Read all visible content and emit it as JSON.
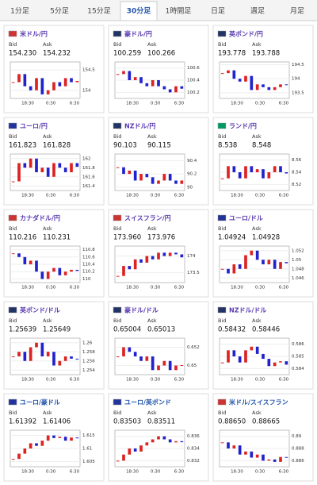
{
  "tabs": {
    "labels": [
      "1分足",
      "5分足",
      "15分足",
      "30分足",
      "1時間足",
      "日足",
      "週足",
      "月足"
    ],
    "active": 3
  },
  "bid_label": "Bid",
  "ask_label": "Ask",
  "cards": [
    {
      "name": "米ドル/円",
      "bid": "154.230",
      "ask": "154.232",
      "ylim": [
        153.8,
        154.7
      ],
      "yticks": [
        154.5,
        154
      ],
      "xticks": [
        "18:30",
        "0:30",
        "6:30"
      ],
      "closes": [
        154.2,
        154.4,
        154.1,
        154.0,
        154.3,
        153.9,
        154.0,
        154.2,
        154.1,
        154.3,
        154.2,
        154.23
      ]
    },
    {
      "name": "豪ドル/円",
      "bid": "100.259",
      "ask": "100.266",
      "ylim": [
        100.1,
        100.7
      ],
      "yticks": [
        100.6,
        100.4,
        100.2
      ],
      "xticks": [
        "18:30",
        "0:30",
        "6:30"
      ],
      "closes": [
        100.5,
        100.55,
        100.4,
        100.45,
        100.35,
        100.3,
        100.4,
        100.3,
        100.25,
        100.2,
        100.3,
        100.26
      ]
    },
    {
      "name": "英ポンド/円",
      "bid": "193.778",
      "ask": "193.788",
      "ylim": [
        193.3,
        194.6
      ],
      "yticks": [
        194.5,
        194,
        193.5
      ],
      "xticks": [
        "18:30",
        "0:30",
        "6:30"
      ],
      "closes": [
        194.2,
        194.3,
        194.0,
        193.9,
        194.1,
        193.6,
        193.8,
        193.7,
        193.6,
        193.7,
        193.8,
        193.78
      ]
    },
    {
      "name": "ユーロ/円",
      "bid": "161.823",
      "ask": "161.828",
      "ylim": [
        161.3,
        162.1
      ],
      "yticks": [
        162,
        161.8,
        161.6,
        161.4
      ],
      "xticks": [
        "18:30",
        "0:30",
        "6:30"
      ],
      "closes": [
        161.5,
        161.9,
        161.8,
        162.0,
        161.7,
        161.8,
        161.6,
        161.9,
        161.8,
        161.7,
        161.9,
        161.82
      ]
    },
    {
      "name": "NZドル/円",
      "bid": "90.103",
      "ask": "90.115",
      "ylim": [
        89.95,
        90.5
      ],
      "yticks": [
        90.4,
        90.2,
        90
      ],
      "xticks": [
        "18:30",
        "0:30",
        "6:30"
      ],
      "closes": [
        90.3,
        90.2,
        90.25,
        90.1,
        90.2,
        90.15,
        90.05,
        90.1,
        90.2,
        90.1,
        90.05,
        90.1
      ]
    },
    {
      "name": "ランド/円",
      "bid": "8.538",
      "ask": "8.548",
      "ylim": [
        8.51,
        8.57
      ],
      "yticks": [
        8.56,
        8.54,
        8.52
      ],
      "xticks": [
        "18:30",
        "0:30",
        "6:30"
      ],
      "closes": [
        8.53,
        8.55,
        8.54,
        8.53,
        8.55,
        8.54,
        8.545,
        8.53,
        8.54,
        8.55,
        8.54,
        8.538
      ]
    },
    {
      "name": "カナダドル/円",
      "bid": "110.216",
      "ask": "110.231",
      "ylim": [
        109.9,
        110.9
      ],
      "yticks": [
        110.8,
        110.6,
        110.4,
        110.2,
        110
      ],
      "xticks": [
        "18:30",
        "0:30",
        "6:30"
      ],
      "closes": [
        110.7,
        110.6,
        110.4,
        110.5,
        110.2,
        110.0,
        110.2,
        110.3,
        110.1,
        110.2,
        110.25,
        110.22
      ]
    },
    {
      "name": "スイスフラン/円",
      "bid": "173.960",
      "ask": "173.976",
      "ylim": [
        173.2,
        174.3
      ],
      "yticks": [
        174,
        173.5
      ],
      "xticks": [
        "18:30",
        "0:30",
        "6:30"
      ],
      "closes": [
        173.4,
        173.7,
        173.6,
        173.9,
        173.8,
        174.0,
        173.9,
        174.1,
        174.0,
        174.1,
        174.05,
        173.96
      ]
    },
    {
      "name": "ユーロ/ドル",
      "bid": "1.04924",
      "ask": "1.04928",
      "ylim": [
        1.045,
        1.053
      ],
      "yticks": [
        1.052,
        1.05,
        1.048,
        1.046
      ],
      "xticks": [
        "18:30",
        "0:30",
        "6:30"
      ],
      "closes": [
        1.048,
        1.047,
        1.049,
        1.048,
        1.051,
        1.052,
        1.05,
        1.049,
        1.05,
        1.048,
        1.0495,
        1.04924
      ]
    },
    {
      "name": "英ポンド/ドル",
      "bid": "1.25639",
      "ask": "1.25649",
      "ylim": [
        1.253,
        1.261
      ],
      "yticks": [
        1.26,
        1.258,
        1.256,
        1.254
      ],
      "xticks": [
        "18:30",
        "0:30",
        "6:30"
      ],
      "closes": [
        1.257,
        1.258,
        1.256,
        1.259,
        1.26,
        1.257,
        1.258,
        1.255,
        1.256,
        1.257,
        1.2565,
        1.25639
      ]
    },
    {
      "name": "豪ドル/ドル",
      "bid": "0.65004",
      "ask": "0.65013",
      "ylim": [
        0.649,
        0.653
      ],
      "yticks": [
        0.652,
        0.65
      ],
      "xticks": [
        "18:30",
        "0:30",
        "6:30"
      ],
      "closes": [
        0.651,
        0.652,
        0.6515,
        0.651,
        0.6505,
        0.651,
        0.6495,
        0.65,
        0.6505,
        0.6495,
        0.65,
        0.65004
      ]
    },
    {
      "name": "NZドル/ドル",
      "bid": "0.58432",
      "ask": "0.58446",
      "ylim": [
        0.5835,
        0.5865
      ],
      "yticks": [
        0.586,
        0.585,
        0.584
      ],
      "xticks": [
        "18:30",
        "0:30",
        "6:30"
      ],
      "closes": [
        0.5845,
        0.5855,
        0.585,
        0.5845,
        0.5855,
        0.5858,
        0.5852,
        0.5848,
        0.5842,
        0.5845,
        0.5846,
        0.58432
      ]
    },
    {
      "name": "ユーロ/豪ドル",
      "bid": "1.61392",
      "ask": "1.61406",
      "ylim": [
        1.603,
        1.617
      ],
      "yticks": [
        1.615,
        1.61,
        1.605
      ],
      "xticks": [
        "18:30",
        "0:30",
        "6:30"
      ],
      "closes": [
        1.606,
        1.608,
        1.61,
        1.612,
        1.611,
        1.613,
        1.615,
        1.614,
        1.6145,
        1.613,
        1.6142,
        1.61392
      ]
    },
    {
      "name": "ユーロ/英ポンド",
      "bid": "0.83503",
      "ask": "0.83511",
      "ylim": [
        0.831,
        0.837
      ],
      "yticks": [
        0.836,
        0.834,
        0.832
      ],
      "xticks": [
        "18:30",
        "0:30",
        "6:30"
      ],
      "closes": [
        0.832,
        0.833,
        0.834,
        0.8335,
        0.8345,
        0.835,
        0.8355,
        0.836,
        0.8355,
        0.835,
        0.8352,
        0.83503
      ]
    },
    {
      "name": "米ドル/スイスフラン",
      "bid": "0.88650",
      "ask": "0.88665",
      "ylim": [
        0.885,
        0.891
      ],
      "yticks": [
        0.89,
        0.888,
        0.886
      ],
      "xticks": [
        "18:30",
        "0:30",
        "6:30"
      ],
      "closes": [
        0.889,
        0.888,
        0.8885,
        0.887,
        0.8875,
        0.8865,
        0.887,
        0.886,
        0.8862,
        0.8858,
        0.8866,
        0.8865
      ]
    }
  ]
}
